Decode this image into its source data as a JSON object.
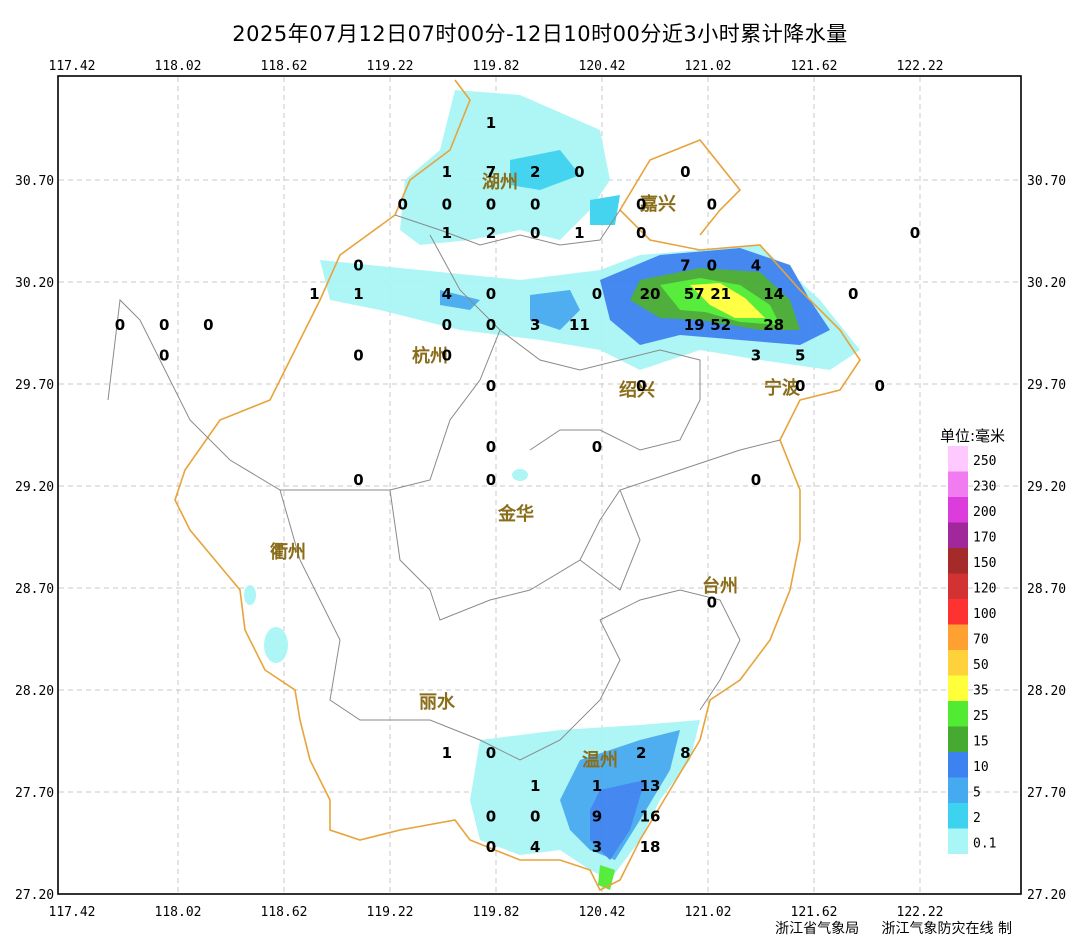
{
  "title": "2025年07月12日07时00分-12日10时00分近3小时累计降水量",
  "axes": {
    "lon_ticks": [
      "117.42",
      "118.02",
      "118.62",
      "119.22",
      "119.82",
      "120.42",
      "121.02",
      "121.62",
      "122.22"
    ],
    "lat_ticks": [
      "30.70",
      "30.20",
      "29.70",
      "29.20",
      "28.70",
      "28.20",
      "27.70",
      "27.20"
    ]
  },
  "legend": {
    "unit": "单位:毫米",
    "levels": [
      {
        "label": "250",
        "color": "#ffc8ff"
      },
      {
        "label": "230",
        "color": "#f07cf0"
      },
      {
        "label": "200",
        "color": "#dc3cdc"
      },
      {
        "label": "170",
        "color": "#a0289a"
      },
      {
        "label": "150",
        "color": "#a52a2a"
      },
      {
        "label": "120",
        "color": "#d23232"
      },
      {
        "label": "100",
        "color": "#ff3232"
      },
      {
        "label": "70",
        "color": "#ffa032"
      },
      {
        "label": "50",
        "color": "#ffd23c"
      },
      {
        "label": "35",
        "color": "#ffff3c"
      },
      {
        "label": "25",
        "color": "#50eb32"
      },
      {
        "label": "15",
        "color": "#46aa32"
      },
      {
        "label": "10",
        "color": "#3c82f0"
      },
      {
        "label": "5",
        "color": "#46aaf0"
      },
      {
        "label": "2",
        "color": "#3cd2f0"
      },
      {
        "label": "0.1",
        "color": "#aaf5f5"
      }
    ]
  },
  "cities": [
    {
      "name": "湖州"
    },
    {
      "name": "嘉兴"
    },
    {
      "name": "杭州"
    },
    {
      "name": "绍兴"
    },
    {
      "name": "宁波"
    },
    {
      "name": "金华"
    },
    {
      "name": "衢州"
    },
    {
      "name": "台州"
    },
    {
      "name": "丽水"
    },
    {
      "name": "温州"
    }
  ],
  "station_values": [
    {
      "v": "1",
      "lon": 119.82,
      "lat": 30.98
    },
    {
      "v": "1",
      "lon": 119.57,
      "lat": 30.74
    },
    {
      "v": "7",
      "lon": 119.82,
      "lat": 30.74
    },
    {
      "v": "2",
      "lon": 120.07,
      "lat": 30.74
    },
    {
      "v": "0",
      "lon": 120.32,
      "lat": 30.74
    },
    {
      "v": "0",
      "lon": 120.92,
      "lat": 30.74
    },
    {
      "v": "0",
      "lon": 119.32,
      "lat": 30.58
    },
    {
      "v": "0",
      "lon": 119.57,
      "lat": 30.58
    },
    {
      "v": "0",
      "lon": 119.82,
      "lat": 30.58
    },
    {
      "v": "0",
      "lon": 120.07,
      "lat": 30.58
    },
    {
      "v": "0",
      "lon": 120.67,
      "lat": 30.58
    },
    {
      "v": "0",
      "lon": 121.07,
      "lat": 30.58
    },
    {
      "v": "1",
      "lon": 119.57,
      "lat": 30.44
    },
    {
      "v": "2",
      "lon": 119.82,
      "lat": 30.44
    },
    {
      "v": "0",
      "lon": 120.07,
      "lat": 30.44
    },
    {
      "v": "1",
      "lon": 120.32,
      "lat": 30.44
    },
    {
      "v": "0",
      "lon": 120.67,
      "lat": 30.44
    },
    {
      "v": "0",
      "lon": 122.22,
      "lat": 30.44
    },
    {
      "v": "0",
      "lon": 119.07,
      "lat": 30.28
    },
    {
      "v": "7",
      "lon": 120.92,
      "lat": 30.28
    },
    {
      "v": "0",
      "lon": 121.07,
      "lat": 30.28
    },
    {
      "v": "4",
      "lon": 121.32,
      "lat": 30.28
    },
    {
      "v": "1",
      "lon": 118.82,
      "lat": 30.14
    },
    {
      "v": "1",
      "lon": 119.07,
      "lat": 30.14
    },
    {
      "v": "4",
      "lon": 119.57,
      "lat": 30.14
    },
    {
      "v": "0",
      "lon": 119.82,
      "lat": 30.14
    },
    {
      "v": "0",
      "lon": 120.42,
      "lat": 30.14
    },
    {
      "v": "20",
      "lon": 120.72,
      "lat": 30.14
    },
    {
      "v": "57",
      "lon": 120.97,
      "lat": 30.14
    },
    {
      "v": "21",
      "lon": 121.12,
      "lat": 30.14
    },
    {
      "v": "14",
      "lon": 121.42,
      "lat": 30.14
    },
    {
      "v": "0",
      "lon": 121.87,
      "lat": 30.14
    },
    {
      "v": "0",
      "lon": 117.72,
      "lat": 29.99
    },
    {
      "v": "0",
      "lon": 117.97,
      "lat": 29.99
    },
    {
      "v": "0",
      "lon": 118.22,
      "lat": 29.99
    },
    {
      "v": "0",
      "lon": 119.57,
      "lat": 29.99
    },
    {
      "v": "0",
      "lon": 119.82,
      "lat": 29.99
    },
    {
      "v": "3",
      "lon": 120.07,
      "lat": 29.99
    },
    {
      "v": "11",
      "lon": 120.32,
      "lat": 29.99
    },
    {
      "v": "19",
      "lon": 120.97,
      "lat": 29.99
    },
    {
      "v": "52",
      "lon": 121.12,
      "lat": 29.99
    },
    {
      "v": "28",
      "lon": 121.42,
      "lat": 29.99
    },
    {
      "v": "0",
      "lon": 117.97,
      "lat": 29.84
    },
    {
      "v": "0",
      "lon": 119.07,
      "lat": 29.84
    },
    {
      "v": "0",
      "lon": 119.57,
      "lat": 29.84
    },
    {
      "v": "3",
      "lon": 121.32,
      "lat": 29.84
    },
    {
      "v": "5",
      "lon": 121.57,
      "lat": 29.84
    },
    {
      "v": "0",
      "lon": 119.82,
      "lat": 29.69
    },
    {
      "v": "0",
      "lon": 120.67,
      "lat": 29.69
    },
    {
      "v": "0",
      "lon": 121.57,
      "lat": 29.69
    },
    {
      "v": "0",
      "lon": 122.02,
      "lat": 29.69
    },
    {
      "v": "0",
      "lon": 119.82,
      "lat": 29.39
    },
    {
      "v": "0",
      "lon": 120.42,
      "lat": 29.39
    },
    {
      "v": "0",
      "lon": 119.07,
      "lat": 29.23
    },
    {
      "v": "0",
      "lon": 119.82,
      "lat": 29.23
    },
    {
      "v": "0",
      "lon": 121.32,
      "lat": 29.23
    },
    {
      "v": "0",
      "lon": 121.07,
      "lat": 28.63
    },
    {
      "v": "1",
      "lon": 119.57,
      "lat": 27.89
    },
    {
      "v": "0",
      "lon": 119.82,
      "lat": 27.89
    },
    {
      "v": "2",
      "lon": 120.67,
      "lat": 27.89
    },
    {
      "v": "8",
      "lon": 120.92,
      "lat": 27.89
    },
    {
      "v": "1",
      "lon": 120.07,
      "lat": 27.73
    },
    {
      "v": "1",
      "lon": 120.42,
      "lat": 27.73
    },
    {
      "v": "13",
      "lon": 120.72,
      "lat": 27.73
    },
    {
      "v": "0",
      "lon": 119.82,
      "lat": 27.58
    },
    {
      "v": "0",
      "lon": 120.07,
      "lat": 27.58
    },
    {
      "v": "9",
      "lon": 120.42,
      "lat": 27.58
    },
    {
      "v": "16",
      "lon": 120.72,
      "lat": 27.58
    },
    {
      "v": "0",
      "lon": 119.82,
      "lat": 27.43
    },
    {
      "v": "4",
      "lon": 120.07,
      "lat": 27.43
    },
    {
      "v": "3",
      "lon": 120.42,
      "lat": 27.43
    },
    {
      "v": "18",
      "lon": 120.72,
      "lat": 27.43
    }
  ],
  "credits": [
    "浙江省气象局",
    "浙江气象防灾在线 制"
  ]
}
